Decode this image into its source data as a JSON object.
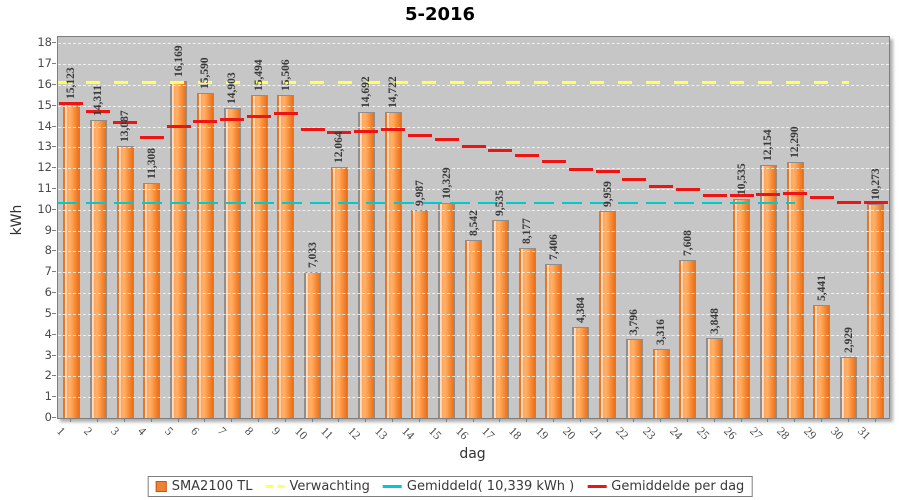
{
  "title": "5-2016",
  "axes": {
    "y_label": "kWh",
    "x_label": "dag",
    "y_ticks_min": 0,
    "y_ticks_max": 18
  },
  "legend": {
    "items": [
      {
        "label": "SMA2100 TL",
        "marker": "bar-swatch",
        "color": "#f08032"
      },
      {
        "label": "Verwachting",
        "marker": "dashed-line",
        "color": "#ffff5e"
      },
      {
        "label": "Gemiddeld( 10,339 kWh )",
        "marker": "dashed-line",
        "color": "#00cbcb"
      },
      {
        "label": "Gemiddelde per dag",
        "marker": "dashed-line",
        "color": "#ee1414"
      }
    ]
  },
  "chart_data": {
    "type": "bar",
    "title": "5-2016",
    "xlabel": "dag",
    "ylabel": "kWh",
    "ylim": [
      0,
      18
    ],
    "grid": "horizontal-white-dashed",
    "legend_position": "bottom",
    "plot_background": "#c6c6c6",
    "value_label_format": "0,000 (comma decimal, 3 digits)",
    "categories": [
      1,
      2,
      3,
      4,
      5,
      6,
      7,
      8,
      9,
      10,
      11,
      12,
      13,
      14,
      15,
      16,
      17,
      18,
      19,
      20,
      21,
      22,
      23,
      24,
      25,
      26,
      27,
      28,
      29,
      30,
      31
    ],
    "series": [
      {
        "name": "SMA2100 TL",
        "type": "bar",
        "color": "#f08032",
        "values": [
          15.123,
          14.311,
          13.087,
          11.308,
          16.169,
          15.59,
          14.903,
          15.494,
          15.506,
          7.033,
          12.064,
          14.692,
          14.722,
          9.987,
          10.329,
          8.542,
          9.535,
          8.177,
          7.406,
          4.384,
          9.959,
          3.796,
          3.316,
          7.608,
          3.848,
          10.535,
          12.154,
          12.29,
          5.441,
          2.929,
          10.273
        ]
      },
      {
        "name": "Verwachting",
        "type": "hline-dashed",
        "color": "#ffff5e",
        "value": 16.12
      },
      {
        "name": "Gemiddeld( 10,339 kWh )",
        "type": "hline-dashed",
        "color": "#00cbcb",
        "value": 10.339
      },
      {
        "name": "Gemiddelde per dag",
        "type": "step-segments",
        "color": "#ee1414",
        "values": [
          15.123,
          14.717,
          14.174,
          13.457,
          14.0,
          14.265,
          14.356,
          14.498,
          14.61,
          13.852,
          13.69,
          13.773,
          13.846,
          13.571,
          13.355,
          13.054,
          12.847,
          12.587,
          12.315,
          11.918,
          11.825,
          11.46,
          11.106,
          10.96,
          10.676,
          10.67,
          10.725,
          10.781,
          10.597,
          10.341,
          10.339
        ]
      }
    ]
  }
}
